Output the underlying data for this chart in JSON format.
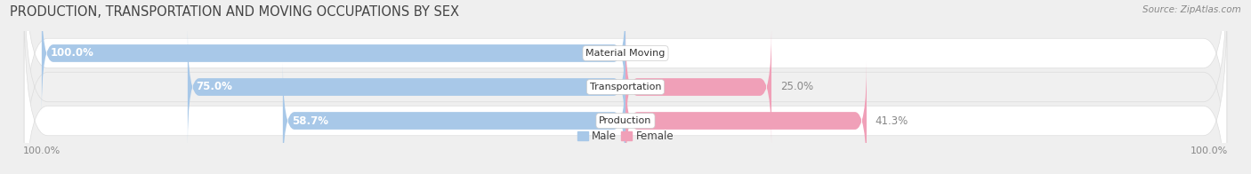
{
  "title": "PRODUCTION, TRANSPORTATION AND MOVING OCCUPATIONS BY SEX",
  "source": "Source: ZipAtlas.com",
  "categories": [
    "Material Moving",
    "Transportation",
    "Production"
  ],
  "male_pct": [
    100.0,
    75.0,
    58.7
  ],
  "female_pct": [
    0.0,
    25.0,
    41.3
  ],
  "male_color": "#a8c8e8",
  "female_color": "#f0a0b8",
  "label_color_male_inside": "#5a8fc0",
  "label_color_outside": "#888888",
  "bar_height": 0.52,
  "bg_color": "#efefef",
  "row_bg_even": "#ffffff",
  "row_bg_odd": "#f0f0f0",
  "title_fontsize": 10.5,
  "source_fontsize": 7.5,
  "label_fontsize": 8.5,
  "category_fontsize": 8,
  "axis_label_fontsize": 8,
  "legend_fontsize": 8.5,
  "xlim_left": -105,
  "xlim_right": 105,
  "axis_ticks": [
    -100,
    100
  ],
  "axis_tick_labels": [
    "100.0%",
    "100.0%"
  ]
}
